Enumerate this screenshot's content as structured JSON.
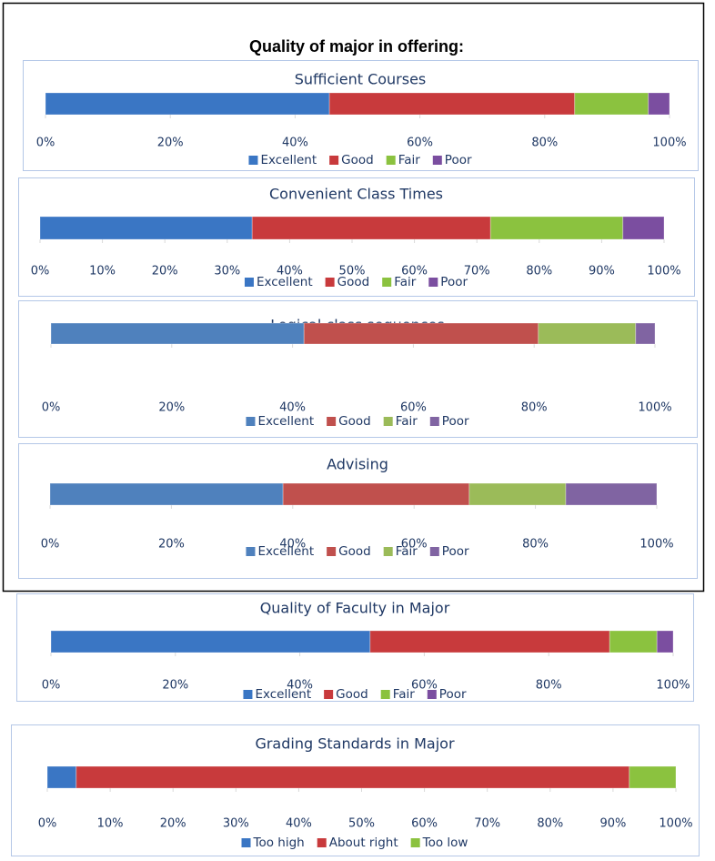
{
  "heading": "Quality of major in offering:",
  "chart_data": [
    {
      "type": "bar",
      "orientation": "horizontal",
      "stacked": true,
      "title": "Sufficient Courses",
      "categories": [
        null
      ],
      "series": [
        {
          "name": "Excellent",
          "color": "#3a76c4",
          "values": [
            45.5
          ]
        },
        {
          "name": "Good",
          "color": "#c83a3c",
          "values": [
            39.3
          ]
        },
        {
          "name": "Fair",
          "color": "#8bc23f",
          "values": [
            11.8
          ]
        },
        {
          "name": "Poor",
          "color": "#7b4ea0",
          "values": [
            3.4
          ]
        }
      ],
      "xlim": [
        0,
        100
      ],
      "xticks": [
        {
          "value": 0,
          "label": "0%"
        },
        {
          "value": 20,
          "label": "20%"
        },
        {
          "value": 40,
          "label": "40%"
        },
        {
          "value": 60,
          "label": "60%"
        },
        {
          "value": 80,
          "label": "80%"
        },
        {
          "value": 100,
          "label": "100%"
        }
      ],
      "legend": "bottom"
    },
    {
      "type": "bar",
      "orientation": "horizontal",
      "stacked": true,
      "title": "Convenient Class Times",
      "categories": [
        null
      ],
      "series": [
        {
          "name": "Excellent",
          "color": "#3a76c4",
          "values": [
            34.0
          ]
        },
        {
          "name": "Good",
          "color": "#c83a3c",
          "values": [
            38.2
          ]
        },
        {
          "name": "Fair",
          "color": "#8bc23f",
          "values": [
            21.2
          ]
        },
        {
          "name": "Poor",
          "color": "#7b4ea0",
          "values": [
            6.6
          ]
        }
      ],
      "xlim": [
        0,
        100
      ],
      "xticks": [
        {
          "value": 0,
          "label": "0%"
        },
        {
          "value": 10,
          "label": "10%"
        },
        {
          "value": 20,
          "label": "20%"
        },
        {
          "value": 30,
          "label": "30%"
        },
        {
          "value": 40,
          "label": "40%"
        },
        {
          "value": 50,
          "label": "50%"
        },
        {
          "value": 60,
          "label": "60%"
        },
        {
          "value": 70,
          "label": "70%"
        },
        {
          "value": 80,
          "label": "80%"
        },
        {
          "value": 90,
          "label": "90%"
        },
        {
          "value": 100,
          "label": "100%"
        }
      ],
      "legend": "bottom"
    },
    {
      "type": "bar",
      "orientation": "horizontal",
      "stacked": true,
      "title": "Logical class sequences",
      "categories": [
        null
      ],
      "series": [
        {
          "name": "Excellent",
          "color": "#4f81bd",
          "values": [
            41.9
          ]
        },
        {
          "name": "Good",
          "color": "#c0504d",
          "values": [
            38.8
          ]
        },
        {
          "name": "Fair",
          "color": "#9bbb59",
          "values": [
            16.1
          ]
        },
        {
          "name": "Poor",
          "color": "#8064a2",
          "values": [
            3.2
          ]
        }
      ],
      "xlim": [
        0,
        100
      ],
      "xticks": [
        {
          "value": 0,
          "label": "0%"
        },
        {
          "value": 20,
          "label": "20%"
        },
        {
          "value": 40,
          "label": "40%"
        },
        {
          "value": 60,
          "label": "60%"
        },
        {
          "value": 80,
          "label": "80%"
        },
        {
          "value": 100,
          "label": "100%"
        }
      ],
      "legend": "bottom"
    },
    {
      "type": "bar",
      "orientation": "horizontal",
      "stacked": true,
      "title": "Advising",
      "categories": [
        null
      ],
      "series": [
        {
          "name": "Excellent",
          "color": "#4f81bd",
          "values": [
            38.4
          ]
        },
        {
          "name": "Good",
          "color": "#c0504d",
          "values": [
            30.7
          ]
        },
        {
          "name": "Fair",
          "color": "#9bbb59",
          "values": [
            15.9
          ]
        },
        {
          "name": "Poor",
          "color": "#8064a2",
          "values": [
            15.0
          ]
        }
      ],
      "xlim": [
        0,
        100
      ],
      "xticks": [
        {
          "value": 0,
          "label": "0%"
        },
        {
          "value": 20,
          "label": "20%"
        },
        {
          "value": 40,
          "label": "40%"
        },
        {
          "value": 60,
          "label": "60%"
        },
        {
          "value": 80,
          "label": "80%"
        },
        {
          "value": 100,
          "label": "100%"
        }
      ],
      "legend": "bottom"
    },
    {
      "type": "bar",
      "orientation": "horizontal",
      "stacked": true,
      "title": "Quality of Faculty in Major",
      "categories": [
        null
      ],
      "series": [
        {
          "name": "Excellent",
          "color": "#3a76c4",
          "values": [
            51.3
          ]
        },
        {
          "name": "Good",
          "color": "#c83a3c",
          "values": [
            38.5
          ]
        },
        {
          "name": "Fair",
          "color": "#8bc23f",
          "values": [
            7.6
          ]
        },
        {
          "name": "Poor",
          "color": "#7b4ea0",
          "values": [
            2.6
          ]
        }
      ],
      "xlim": [
        0,
        100
      ],
      "xticks": [
        {
          "value": 0,
          "label": "0%"
        },
        {
          "value": 20,
          "label": "20%"
        },
        {
          "value": 40,
          "label": "40%"
        },
        {
          "value": 60,
          "label": "60%"
        },
        {
          "value": 80,
          "label": "80%"
        },
        {
          "value": 100,
          "label": "100%"
        }
      ],
      "legend": "bottom"
    },
    {
      "type": "bar",
      "orientation": "horizontal",
      "stacked": true,
      "title": "Grading Standards in Major",
      "categories": [
        null
      ],
      "series": [
        {
          "name": "Too high",
          "color": "#3a76c4",
          "values": [
            4.6
          ]
        },
        {
          "name": "About right",
          "color": "#c83a3c",
          "values": [
            88.0
          ]
        },
        {
          "name": "Too low",
          "color": "#8bc23f",
          "values": [
            7.4
          ]
        }
      ],
      "xlim": [
        0,
        100
      ],
      "xticks": [
        {
          "value": 0,
          "label": "0%"
        },
        {
          "value": 10,
          "label": "10%"
        },
        {
          "value": 20,
          "label": "20%"
        },
        {
          "value": 30,
          "label": "30%"
        },
        {
          "value": 40,
          "label": "40%"
        },
        {
          "value": 50,
          "label": "50%"
        },
        {
          "value": 60,
          "label": "60%"
        },
        {
          "value": 70,
          "label": "70%"
        },
        {
          "value": 80,
          "label": "80%"
        },
        {
          "value": 90,
          "label": "90%"
        },
        {
          "value": 100,
          "label": "100%"
        }
      ],
      "legend": "bottom"
    }
  ]
}
